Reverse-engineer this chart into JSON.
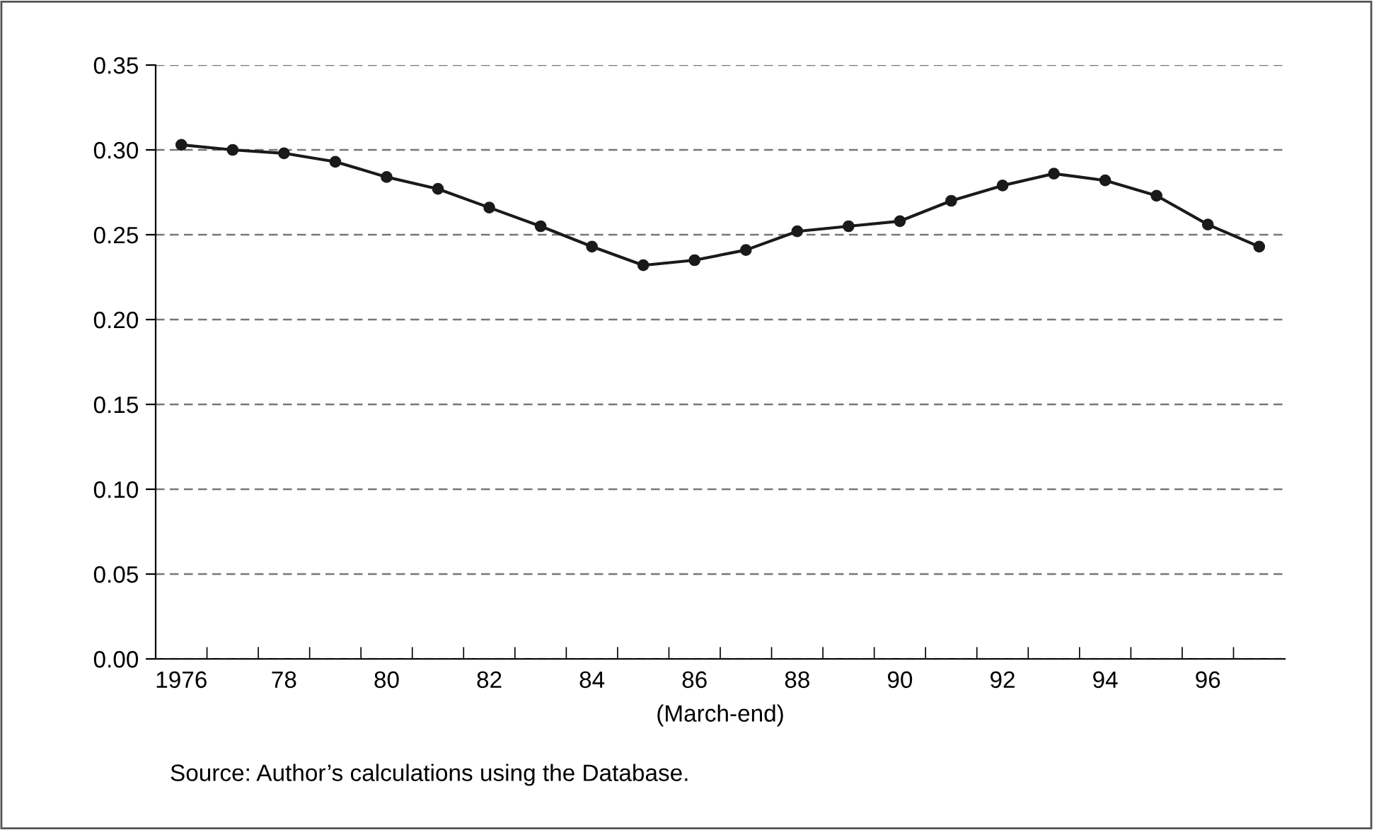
{
  "chart_data": {
    "type": "line",
    "xlabel": "(March-end)",
    "categories": [
      "1976",
      null,
      "78",
      null,
      "80",
      null,
      "82",
      null,
      "84",
      null,
      "86",
      null,
      "88",
      null,
      "90",
      null,
      "92",
      null,
      "94",
      null,
      "96",
      null
    ],
    "series": [
      {
        "color": "#1a1a1a",
        "values": [
          0.303,
          0.3,
          0.298,
          0.293,
          0.284,
          0.277,
          0.266,
          0.255,
          0.243,
          0.232,
          0.235,
          0.241,
          0.252,
          0.255,
          0.258,
          0.27,
          0.279,
          0.286,
          0.282,
          0.273,
          0.256,
          0.243
        ]
      }
    ],
    "ylim": [
      0,
      0.35
    ],
    "yticks": [
      {
        "value": 0,
        "label": "0.00"
      },
      {
        "value": 0.05,
        "label": "0.05"
      },
      {
        "value": 0.1,
        "label": "0.10"
      },
      {
        "value": 0.15,
        "label": "0.15"
      },
      {
        "value": 0.2,
        "label": "0.20"
      },
      {
        "value": 0.25,
        "label": "0.25"
      },
      {
        "value": 0.3,
        "label": "0.30"
      },
      {
        "value": 0.35,
        "label": "0.35"
      }
    ],
    "grid": "y",
    "marker": "circle",
    "line_style": "solid",
    "legend": false,
    "annotations": [
      "Source: Author’s calculations using the Database."
    ]
  }
}
